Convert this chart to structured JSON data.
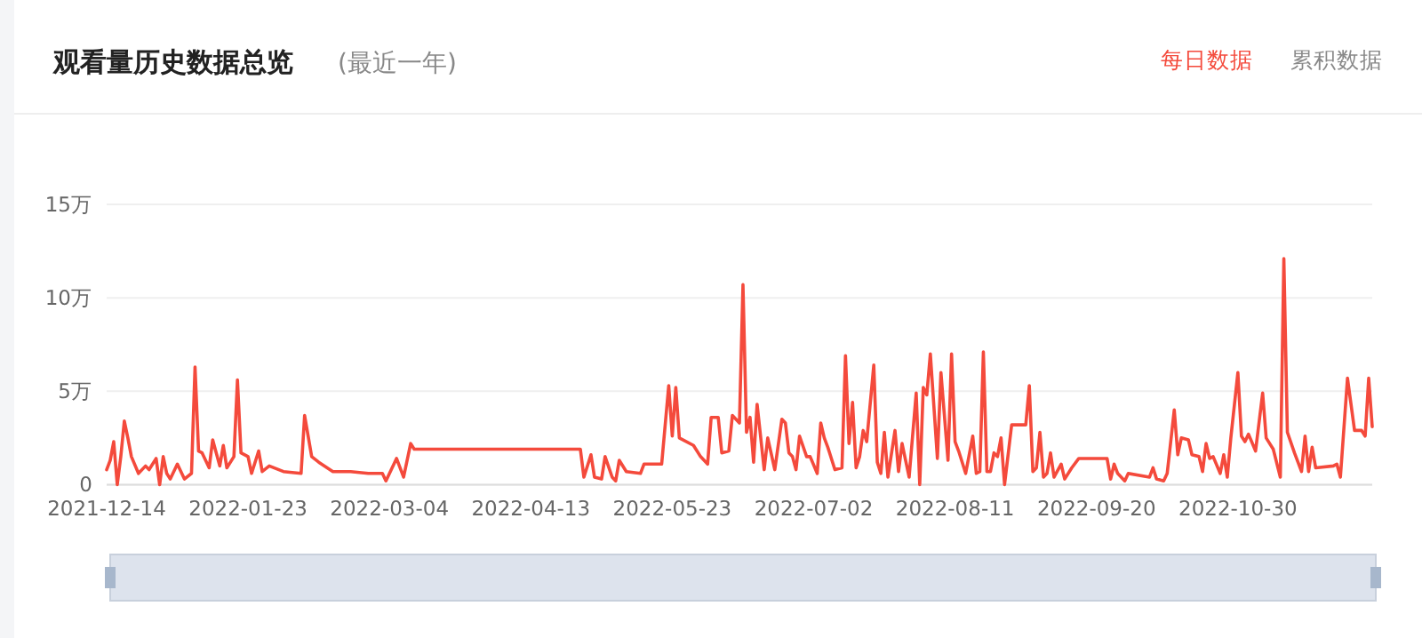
{
  "chart_data": {
    "type": "line",
    "title": "观看量历史数据总览",
    "subtitle": "(最近一年)",
    "annotations": [
      "每日数据",
      "累积数据"
    ],
    "xlim": [
      "2021-12-14",
      "2022-12-07"
    ],
    "xticks": [
      "2021-12-14",
      "2022-01-23",
      "2022-03-04",
      "2022-04-13",
      "2022-05-23",
      "2022-07-02",
      "2022-08-11",
      "2022-09-20",
      "2022-10-30"
    ],
    "ylim": [
      0,
      15
    ],
    "yticks": [
      0,
      {
        "value": 5,
        "label": "5万"
      },
      {
        "value": 10,
        "label": "10万"
      },
      {
        "value": 15,
        "label": "15万"
      }
    ],
    "grid": "y",
    "marker": "none",
    "line_style": "solid",
    "series": [
      {
        "color": "#f44a3c",
        "x": [
          "2021-12-14",
          "2021-12-15",
          "2021-12-16",
          "2021-12-17",
          "2021-12-18",
          "2021-12-19",
          "2021-12-20",
          "2021-12-21",
          "2021-12-23",
          "2021-12-25",
          "2021-12-26",
          "2021-12-28",
          "2021-12-29",
          "2021-12-30",
          "2021-12-31",
          "2022-01-01",
          "2022-01-03",
          "2022-01-05",
          "2022-01-07",
          "2022-01-08",
          "2022-01-09",
          "2022-01-10",
          "2022-01-12",
          "2022-01-13",
          "2022-01-15",
          "2022-01-16",
          "2022-01-17",
          "2022-01-19",
          "2022-01-20",
          "2022-01-21",
          "2022-01-23",
          "2022-01-24",
          "2022-01-26",
          "2022-01-27",
          "2022-01-29",
          "2022-02-02",
          "2022-02-07",
          "2022-02-08",
          "2022-02-10",
          "2022-02-12",
          "2022-02-16",
          "2022-02-21",
          "2022-02-26",
          "2022-03-02",
          "2022-03-03",
          "2022-03-06",
          "2022-03-08",
          "2022-03-10",
          "2022-03-11",
          "2022-04-27",
          "2022-04-28",
          "2022-04-30",
          "2022-05-01",
          "2022-05-03",
          "2022-05-04",
          "2022-05-06",
          "2022-05-07",
          "2022-05-08",
          "2022-05-10",
          "2022-05-14",
          "2022-05-15",
          "2022-05-20",
          "2022-05-22",
          "2022-05-23",
          "2022-05-24",
          "2022-05-25",
          "2022-05-29",
          "2022-05-31",
          "2022-06-02",
          "2022-06-03",
          "2022-06-05",
          "2022-06-06",
          "2022-06-08",
          "2022-06-09",
          "2022-06-11",
          "2022-06-12",
          "2022-06-13",
          "2022-06-14",
          "2022-06-15",
          "2022-06-16",
          "2022-06-18",
          "2022-06-19",
          "2022-06-21",
          "2022-06-23",
          "2022-06-24",
          "2022-06-25",
          "2022-06-26",
          "2022-06-27",
          "2022-06-28",
          "2022-06-30",
          "2022-07-01",
          "2022-07-03",
          "2022-07-04",
          "2022-07-05",
          "2022-07-06",
          "2022-07-08",
          "2022-07-10",
          "2022-07-11",
          "2022-07-12",
          "2022-07-13",
          "2022-07-14",
          "2022-07-15",
          "2022-07-16",
          "2022-07-17",
          "2022-07-19",
          "2022-07-20",
          "2022-07-21",
          "2022-07-22",
          "2022-07-23",
          "2022-07-25",
          "2022-07-26",
          "2022-07-27",
          "2022-07-29",
          "2022-07-31",
          "2022-08-01",
          "2022-08-02",
          "2022-08-03",
          "2022-08-04",
          "2022-08-06",
          "2022-08-07",
          "2022-08-09",
          "2022-08-10",
          "2022-08-11",
          "2022-08-12",
          "2022-08-14",
          "2022-08-16",
          "2022-08-17",
          "2022-08-18",
          "2022-08-19",
          "2022-08-20",
          "2022-08-21",
          "2022-08-22",
          "2022-08-23",
          "2022-08-24",
          "2022-08-25",
          "2022-08-27",
          "2022-08-31",
          "2022-09-01",
          "2022-09-02",
          "2022-09-03",
          "2022-09-04",
          "2022-09-05",
          "2022-09-06",
          "2022-09-07",
          "2022-09-08",
          "2022-09-10",
          "2022-09-11",
          "2022-09-13",
          "2022-09-15",
          "2022-09-23",
          "2022-09-24",
          "2022-09-25",
          "2022-09-26",
          "2022-09-28",
          "2022-09-29",
          "2022-10-05",
          "2022-10-06",
          "2022-10-07",
          "2022-10-09",
          "2022-10-10",
          "2022-10-12",
          "2022-10-13",
          "2022-10-14",
          "2022-10-16",
          "2022-10-17",
          "2022-10-19",
          "2022-10-20",
          "2022-10-21",
          "2022-10-22",
          "2022-10-23",
          "2022-10-25",
          "2022-10-26",
          "2022-10-27",
          "2022-10-28",
          "2022-10-30",
          "2022-10-31",
          "2022-11-01",
          "2022-11-02",
          "2022-11-04",
          "2022-11-06",
          "2022-11-07",
          "2022-11-09",
          "2022-11-11",
          "2022-11-12",
          "2022-11-13",
          "2022-11-15",
          "2022-11-17",
          "2022-11-18",
          "2022-11-19",
          "2022-11-20",
          "2022-11-21",
          "2022-11-26",
          "2022-11-27",
          "2022-11-28",
          "2022-11-30",
          "2022-12-02",
          "2022-12-04",
          "2022-12-05",
          "2022-12-06",
          "2022-12-07"
        ],
        "values": [
          0.8,
          1.3,
          2.3,
          0,
          1.5,
          3.4,
          2.5,
          1.5,
          0.6,
          1.0,
          0.8,
          1.4,
          0,
          1.5,
          0.6,
          0.3,
          1.1,
          0.3,
          0.6,
          6.3,
          1.8,
          1.7,
          0.9,
          2.4,
          1.0,
          2.1,
          0.9,
          1.5,
          5.6,
          1.7,
          1.5,
          0.6,
          1.8,
          0.7,
          1.0,
          0.7,
          0.6,
          3.7,
          1.5,
          1.2,
          0.7,
          0.7,
          0.6,
          0.6,
          0.2,
          1.4,
          0.4,
          2.2,
          1.9,
          1.9,
          0.4,
          1.6,
          0.4,
          0.3,
          1.5,
          0.4,
          0.2,
          1.3,
          0.7,
          0.6,
          1.1,
          1.1,
          5.3,
          2.6,
          5.2,
          2.5,
          2.1,
          1.5,
          1.1,
          3.6,
          3.6,
          1.7,
          1.8,
          3.7,
          3.3,
          10.7,
          2.8,
          3.6,
          1.2,
          4.3,
          0.8,
          2.5,
          0.8,
          3.5,
          3.3,
          1.7,
          1.5,
          0.8,
          2.6,
          1.5,
          1.5,
          0.6,
          3.3,
          2.5,
          2.0,
          0.8,
          0.9,
          6.9,
          2.2,
          4.4,
          0.9,
          1.5,
          2.9,
          2.3,
          6.4,
          1.2,
          0.6,
          2.8,
          0.4,
          2.9,
          0.7,
          2.2,
          0.4,
          4.9,
          0,
          5.2,
          4.8,
          7.0,
          1.4,
          6.0,
          1.3,
          7.0,
          2.3,
          1.8,
          0.6,
          2.6,
          0.6,
          0.7,
          7.1,
          0.7,
          0.7,
          1.7,
          1.5,
          2.5,
          0,
          3.2,
          3.2,
          5.3,
          0.7,
          0.9,
          2.8,
          0.4,
          0.6,
          1.7,
          0.4,
          1.1,
          0.3,
          0.9,
          1.4,
          1.4,
          0.3,
          1.1,
          0.6,
          0.2,
          0.6,
          0.4,
          0.9,
          0.3,
          0.2,
          0.6,
          4.0,
          1.6,
          2.5,
          2.4,
          1.6,
          1.5,
          0.7,
          2.2,
          1.4,
          1.5,
          0.6,
          1.6,
          0.4,
          2.5,
          6.0,
          2.6,
          2.3,
          2.7,
          1.8,
          4.9,
          2.5,
          1.9,
          0.4,
          12.1,
          2.8,
          1.7,
          0.7,
          2.6,
          0.7,
          2.0,
          0.9,
          1.0,
          1.1,
          0.4,
          5.7,
          2.9,
          2.9,
          2.6,
          5.7,
          3.1
        ]
      }
    ]
  }
}
